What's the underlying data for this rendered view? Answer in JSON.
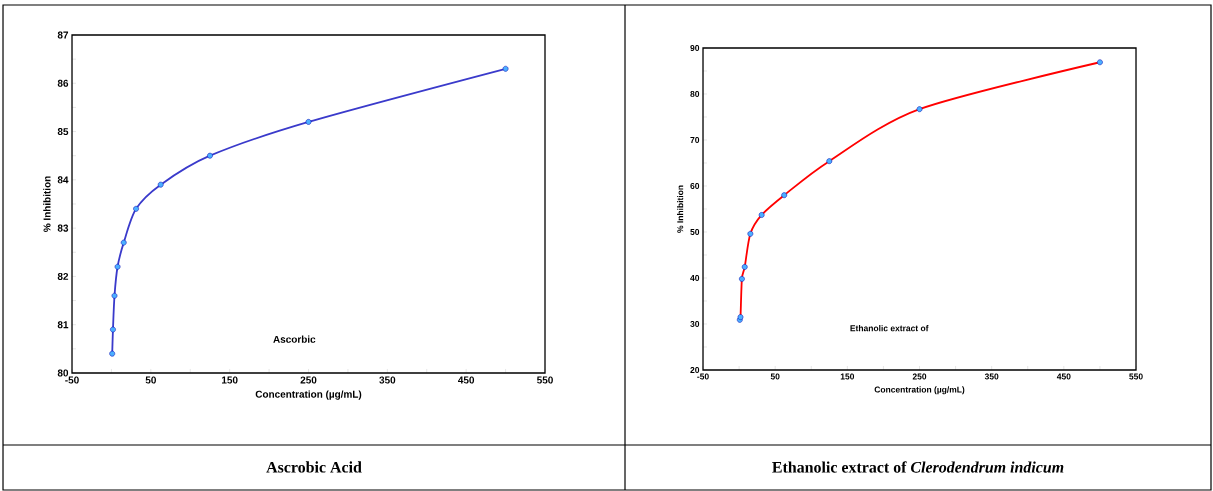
{
  "chart_data": [
    {
      "type": "line",
      "xlabel": "Concentration (µg/mL)",
      "ylabel": "% Inhibition",
      "annotations": [
        "Ascorbic",
        "Ascrobic Acid"
      ],
      "x": [
        0.98,
        1.95,
        3.9,
        7.8,
        15.6,
        31.25,
        62.5,
        125,
        250,
        500
      ],
      "series": [
        {
          "color": "#3a3acb",
          "values": [
            80.4,
            80.9,
            81.6,
            82.2,
            82.7,
            83.4,
            83.9,
            84.5,
            85.2,
            86.3
          ]
        }
      ],
      "xlim": [
        -50,
        550
      ],
      "ylim": [
        80,
        87
      ],
      "xticks": [
        -50,
        {
          "value": 0,
          "label": null
        },
        50,
        {
          "value": 100,
          "label": null
        },
        150,
        {
          "value": 200,
          "label": null
        },
        250,
        {
          "value": 300,
          "label": null
        },
        350,
        {
          "value": 400,
          "label": null
        },
        450,
        {
          "value": 500,
          "label": null
        },
        550
      ],
      "yticks": [
        80,
        {
          "value": 80.5,
          "label": null
        },
        81,
        {
          "value": 81.5,
          "label": null
        },
        82,
        {
          "value": 82.5,
          "label": null
        },
        83,
        {
          "value": 83.5,
          "label": null
        },
        84,
        {
          "value": 84.5,
          "label": null
        },
        85,
        {
          "value": 85.5,
          "label": null
        },
        86,
        {
          "value": 86.5,
          "label": null
        },
        87
      ],
      "grid": false,
      "marker": "circle",
      "line_style": "solid"
    },
    {
      "type": "line",
      "xlabel": "Concentration (µg/mL)",
      "ylabel": "% Inhibition",
      "annotations": [
        "Ethanolic extract of",
        "Ethanolic extract of *Clerodendrum indicum*"
      ],
      "x": [
        0.98,
        1.95,
        3.9,
        7.8,
        15.6,
        31.25,
        62.5,
        125,
        250,
        500
      ],
      "series": [
        {
          "color": "#ff0000",
          "values": [
            30.9,
            31.5,
            39.8,
            42.4,
            49.6,
            53.7,
            58.0,
            65.4,
            76.7,
            86.9
          ]
        }
      ],
      "xlim": [
        -50,
        550
      ],
      "ylim": [
        20,
        90
      ],
      "xticks": [
        -50,
        {
          "value": 0,
          "label": null
        },
        50,
        {
          "value": 100,
          "label": null
        },
        150,
        {
          "value": 200,
          "label": null
        },
        250,
        {
          "value": 300,
          "label": null
        },
        350,
        {
          "value": 400,
          "label": null
        },
        450,
        {
          "value": 500,
          "label": null
        },
        550
      ],
      "yticks": [
        20,
        {
          "value": 25,
          "label": null
        },
        30,
        {
          "value": 35,
          "label": null
        },
        40,
        {
          "value": 45,
          "label": null
        },
        50,
        {
          "value": 55,
          "label": null
        },
        60,
        {
          "value": 65,
          "label": null
        },
        70,
        {
          "value": 75,
          "label": null
        },
        80,
        {
          "value": 85,
          "label": null
        },
        90
      ],
      "grid": false,
      "marker": "circle",
      "line_style": "solid"
    }
  ]
}
